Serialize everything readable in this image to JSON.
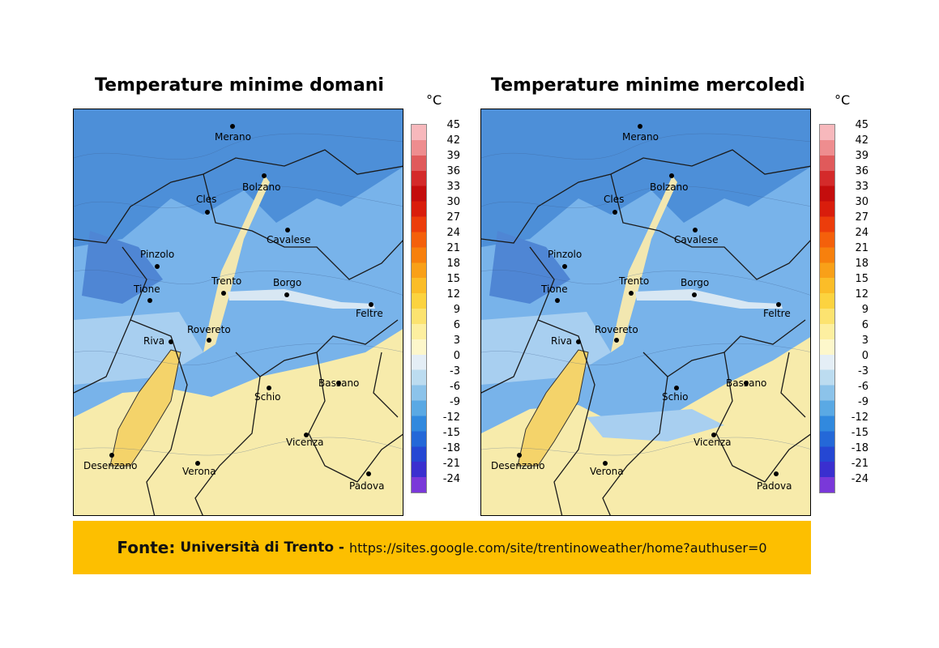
{
  "maps": [
    {
      "title": "Temperature minime domani",
      "variant": "domani"
    },
    {
      "title": "Temperature minime mercoledì",
      "variant": "mercoledi"
    }
  ],
  "unit": "°C",
  "colorbar": {
    "labels": [
      "45",
      "42",
      "39",
      "36",
      "33",
      "30",
      "27",
      "24",
      "21",
      "18",
      "15",
      "12",
      "9",
      "6",
      "3",
      "0",
      "-3",
      "-6",
      "-9",
      "-12",
      "-15",
      "-18",
      "-21",
      "-24"
    ],
    "colors": [
      "#f7b8bc",
      "#ee8d8f",
      "#e05a5b",
      "#d42a2a",
      "#c40d0d",
      "#d91d0c",
      "#ec3d0b",
      "#f4600b",
      "#f7800d",
      "#f9a018",
      "#fbbd28",
      "#fcd33f",
      "#fce370",
      "#fdefa0",
      "#fdf7cb",
      "#e4eef6",
      "#bcdcf0",
      "#8cc3ea",
      "#5aa9e4",
      "#3189de",
      "#2468d8",
      "#2547d3",
      "#3a2fcf",
      "#7a38d9"
    ],
    "range": [
      -24,
      45
    ]
  },
  "cities": [
    {
      "name": "Merano"
    },
    {
      "name": "Bolzano"
    },
    {
      "name": "Cles"
    },
    {
      "name": "Cavalese"
    },
    {
      "name": "Pinzolo"
    },
    {
      "name": "Trento"
    },
    {
      "name": "Borgo"
    },
    {
      "name": "Tione"
    },
    {
      "name": "Feltre"
    },
    {
      "name": "Riva"
    },
    {
      "name": "Rovereto"
    },
    {
      "name": "Bassano"
    },
    {
      "name": "Schio"
    },
    {
      "name": "Vicenza"
    },
    {
      "name": "Desenzano"
    },
    {
      "name": "Verona"
    },
    {
      "name": "Padova"
    }
  ],
  "source": {
    "label": "Fonte:",
    "name": "Università di Trento -",
    "url": "https://sites.google.com/site/trentinoweather/home?authuser=0"
  }
}
